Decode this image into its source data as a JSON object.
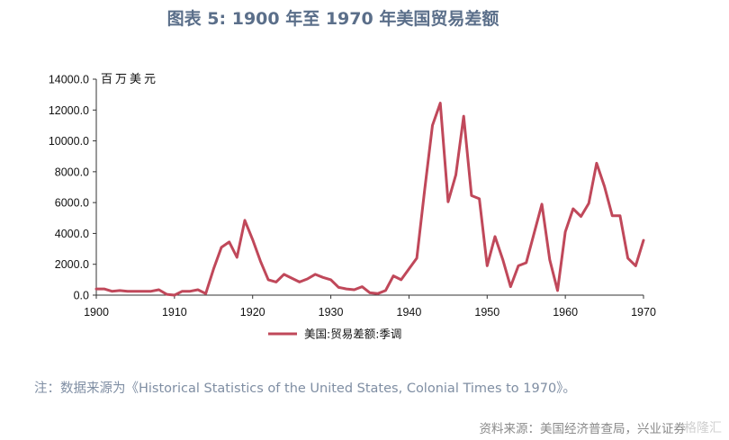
{
  "page": {
    "title": "图表 5:  1900 年至 1970 年美国贸易差额",
    "note": "注：数据来源为《Historical Statistics of the United States, Colonial Times to 1970》。",
    "source": "资料来源：美国经济普查局，兴业证券",
    "watermark": "格隆汇"
  },
  "chart_data": {
    "type": "line",
    "ylabel": "百万美元",
    "xlabel": "",
    "xlim": [
      1900,
      1970
    ],
    "ylim": [
      0,
      14000
    ],
    "xticks": [
      1900,
      1910,
      1920,
      1930,
      1940,
      1950,
      1960,
      1970
    ],
    "yticks": [
      0,
      2000,
      4000,
      6000,
      8000,
      10000,
      12000,
      14000
    ],
    "ytick_labels": [
      "0.0",
      "2000.0",
      "4000.0",
      "6000.0",
      "8000.0",
      "10000.0",
      "12000.0",
      "14000.0"
    ],
    "xtick_labels": [
      "1900",
      "1910",
      "1920",
      "1930",
      "1940",
      "1950",
      "1960",
      "1970"
    ],
    "legend_position": "bottom-center",
    "series": [
      {
        "name": "美国:贸易差额:季调",
        "color": "#c0485a",
        "x": [
          1900,
          1901,
          1902,
          1903,
          1904,
          1905,
          1906,
          1907,
          1908,
          1909,
          1910,
          1911,
          1912,
          1913,
          1914,
          1915,
          1916,
          1917,
          1918,
          1919,
          1920,
          1921,
          1922,
          1923,
          1924,
          1925,
          1926,
          1927,
          1928,
          1929,
          1930,
          1931,
          1932,
          1933,
          1934,
          1935,
          1936,
          1937,
          1938,
          1939,
          1940,
          1941,
          1942,
          1943,
          1944,
          1945,
          1946,
          1947,
          1948,
          1949,
          1950,
          1951,
          1952,
          1953,
          1954,
          1955,
          1956,
          1957,
          1958,
          1959,
          1960,
          1961,
          1962,
          1963,
          1964,
          1965,
          1966,
          1967,
          1968,
          1969,
          1970
        ],
        "values": [
          400,
          400,
          250,
          300,
          250,
          250,
          250,
          250,
          350,
          50,
          0,
          250,
          250,
          350,
          100,
          1700,
          3100,
          3450,
          2450,
          4850,
          3600,
          2200,
          1000,
          850,
          1350,
          1100,
          850,
          1050,
          1350,
          1150,
          1000,
          500,
          400,
          350,
          550,
          150,
          100,
          300,
          1250,
          1000,
          1700,
          2400,
          6800,
          11000,
          12450,
          6050,
          7800,
          11600,
          6450,
          6250,
          1900,
          3800,
          2300,
          550,
          1900,
          2100,
          4000,
          5900,
          2300,
          300,
          4100,
          5600,
          5100,
          5950,
          8550,
          7050,
          5150,
          5150,
          2400,
          1900,
          3550
        ]
      }
    ]
  }
}
